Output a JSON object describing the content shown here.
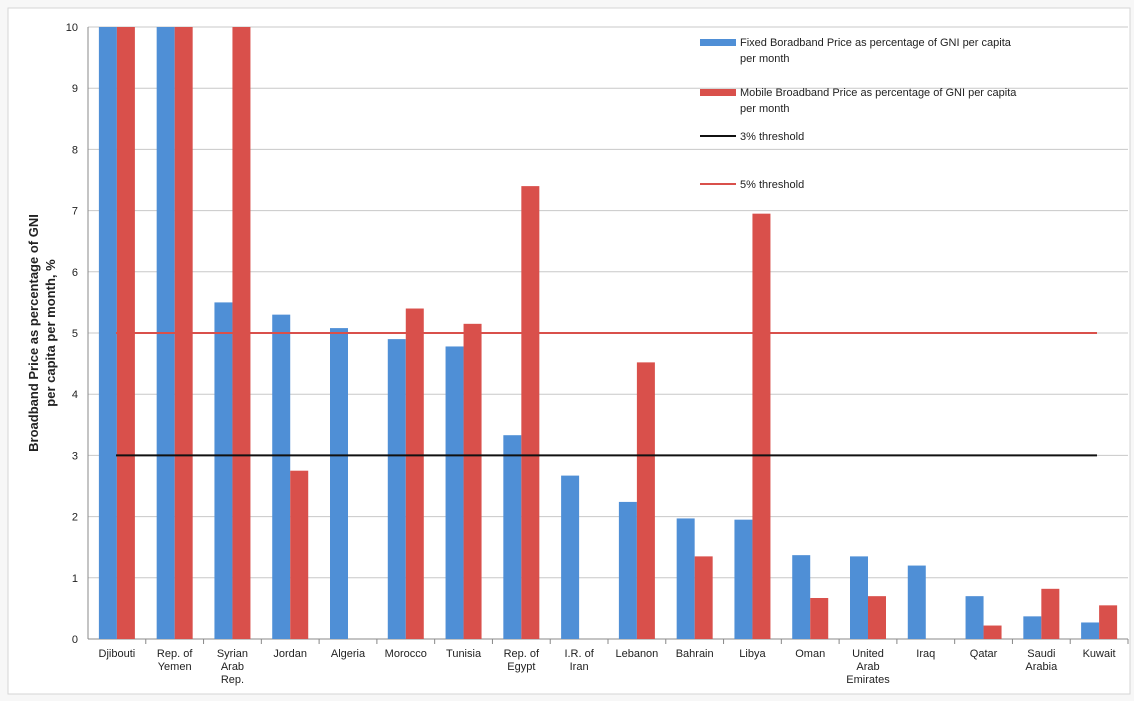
{
  "chart_data": {
    "type": "bar",
    "ylabel": "Broadband Price as percentage of GNI per capita per month, %",
    "ylim": [
      0,
      10
    ],
    "yticks": [
      0,
      1,
      2,
      3,
      4,
      5,
      6,
      7,
      8,
      9,
      10
    ],
    "grid": true,
    "legend_position": "top-right",
    "categories": [
      "Djibouti",
      "Rep. of Yemen",
      "Syrian Arab Rep.",
      "Jordan",
      "Algeria",
      "Morocco",
      "Tunisia",
      "Rep. of Egypt",
      "I.R. of Iran",
      "Lebanon",
      "Bahrain",
      "Libya",
      "Oman",
      "United Arab Emirates",
      "Iraq",
      "Qatar",
      "Saudi Arabia",
      "Kuwait"
    ],
    "category_lines": [
      [
        "Djibouti"
      ],
      [
        "Rep. of",
        "Yemen"
      ],
      [
        "Syrian",
        "Arab",
        "Rep."
      ],
      [
        "Jordan"
      ],
      [
        "Algeria"
      ],
      [
        "Morocco"
      ],
      [
        "Tunisia"
      ],
      [
        "Rep. of",
        "Egypt"
      ],
      [
        "I.R. of",
        "Iran"
      ],
      [
        "Lebanon"
      ],
      [
        "Bahrain"
      ],
      [
        "Libya"
      ],
      [
        "Oman"
      ],
      [
        "United",
        "Arab",
        "Emirates"
      ],
      [
        "Iraq"
      ],
      [
        "Qatar"
      ],
      [
        "Saudi",
        "Arabia"
      ],
      [
        "Kuwait"
      ]
    ],
    "series": [
      {
        "name": "Fixed Boradband Price as percentage of GNI per capita per month",
        "legend_lines": [
          "Fixed Boradband Price as percentage of GNI per capita",
          "per month"
        ],
        "color": "#4f8fd6",
        "values": [
          10,
          10,
          5.5,
          5.3,
          5.08,
          4.9,
          4.78,
          3.33,
          2.67,
          2.24,
          1.97,
          1.95,
          1.37,
          1.35,
          1.2,
          0.7,
          0.37,
          0.27
        ]
      },
      {
        "name": "Mobile Broadband Price as percentage of GNI per capita per month",
        "legend_lines": [
          "Mobile Broadband Price as percentage of GNI per capita",
          "per month"
        ],
        "color": "#d9504b",
        "values": [
          10,
          10,
          10,
          2.75,
          null,
          5.4,
          5.15,
          7.4,
          null,
          4.52,
          1.35,
          6.95,
          0.67,
          0.7,
          null,
          0.22,
          0.82,
          0.55
        ]
      }
    ],
    "thresholds": [
      {
        "name": "3% threshold",
        "value": 3,
        "color": "#111111"
      },
      {
        "name": "5% threshold",
        "value": 5,
        "color": "#d9504b"
      }
    ]
  }
}
